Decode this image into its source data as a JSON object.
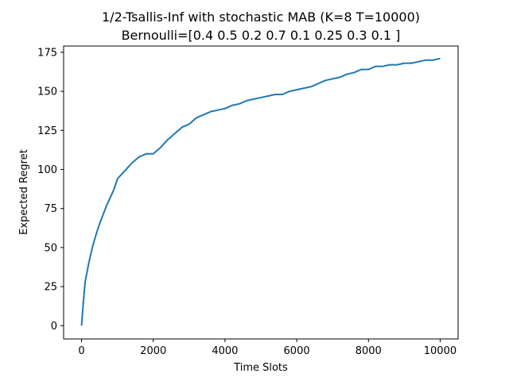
{
  "chart_data": {
    "type": "line",
    "title_line1": "1/2-Tsallis-Inf with stochastic MAB (K=8 T=10000)",
    "title_line2": "Bernoulli=[0.4  0.5  0.2  0.7  0.1  0.25 0.3  0.1 ]",
    "xlabel": "Time Slots",
    "ylabel": "Expected Regret",
    "xlim": [
      -500,
      10500
    ],
    "ylim": [
      -8.5,
      179
    ],
    "xticks": [
      0,
      2000,
      4000,
      6000,
      8000,
      10000
    ],
    "xtick_labels": [
      "0",
      "2000",
      "4000",
      "6000",
      "8000",
      "10000"
    ],
    "yticks": [
      0,
      25,
      50,
      75,
      100,
      125,
      150,
      175
    ],
    "ytick_labels": [
      "0",
      "25",
      "50",
      "75",
      "100",
      "125",
      "150",
      "175"
    ],
    "grid": false,
    "legend": "none",
    "line_color": "#1f77b4",
    "series": [
      {
        "x": [
          0,
          50,
          100,
          200,
          300,
          400,
          500,
          600,
          700,
          800,
          900,
          1000,
          1200,
          1400,
          1600,
          1800,
          2000,
          2200,
          2400,
          2600,
          2800,
          3000,
          3200,
          3400,
          3600,
          3800,
          4000,
          4200,
          4400,
          4600,
          4800,
          5000,
          5200,
          5400,
          5600,
          5800,
          6000,
          6200,
          6400,
          6600,
          6800,
          7000,
          7200,
          7400,
          7600,
          7800,
          8000,
          8200,
          8400,
          8600,
          8800,
          9000,
          9200,
          9400,
          9600,
          9800,
          10000
        ],
        "values": [
          0,
          15,
          28,
          40,
          50,
          58,
          65,
          71,
          77,
          82,
          87,
          94,
          99,
          104,
          108,
          110,
          110,
          114,
          119,
          123,
          127,
          129,
          133,
          135,
          137,
          138,
          139,
          141,
          142,
          144,
          145,
          146,
          147,
          148,
          148,
          150,
          151,
          152,
          153,
          155,
          157,
          158,
          159,
          161,
          162,
          164,
          164,
          166,
          166,
          167,
          167,
          168,
          168,
          169,
          170,
          170,
          171
        ]
      }
    ]
  }
}
